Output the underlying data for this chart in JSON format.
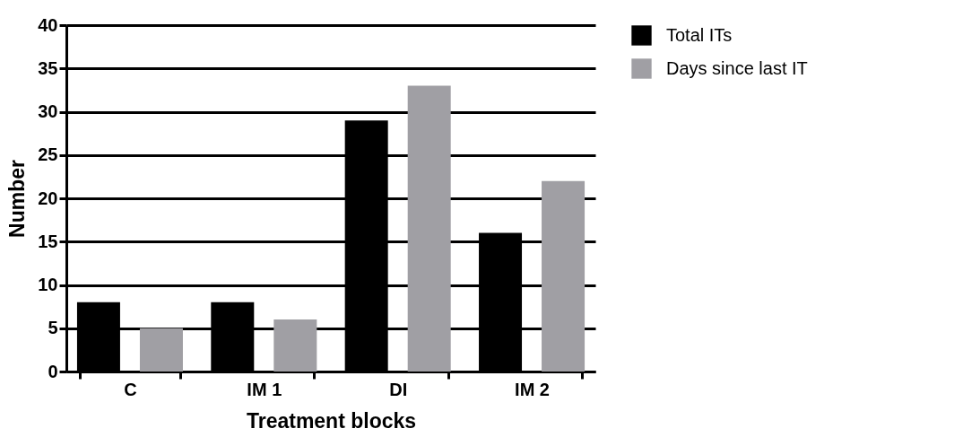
{
  "chart_data": {
    "type": "bar",
    "xlabel": "Treatment blocks",
    "ylabel": "Number",
    "categories": [
      "C",
      "IM 1",
      "DI",
      "IM 2"
    ],
    "series": [
      {
        "name": "Total ITs",
        "color": "#000000",
        "values": [
          8,
          8,
          29,
          16
        ]
      },
      {
        "name": "Days since last IT",
        "color": "#a09fa4",
        "values": [
          5,
          6,
          33,
          22
        ]
      }
    ],
    "ylim": [
      0,
      40
    ],
    "yticks": [
      0,
      5,
      10,
      15,
      20,
      25,
      30,
      35,
      40
    ],
    "grid": "y",
    "legend": "top right"
  }
}
